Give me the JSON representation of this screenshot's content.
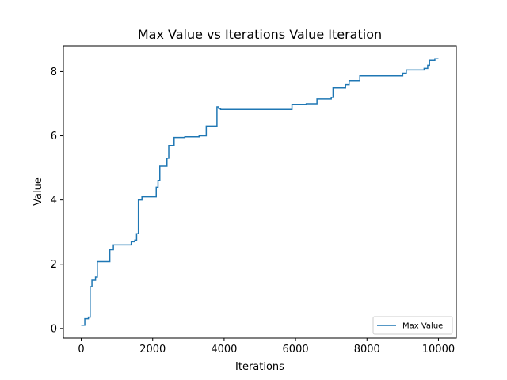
{
  "chart_data": {
    "type": "line",
    "title": "Max Value vs Iterations Value Iteration",
    "xlabel": "Iterations",
    "ylabel": "Value",
    "xlim": [
      -500,
      10500
    ],
    "ylim": [
      -0.3,
      8.8
    ],
    "x_ticks": [
      0,
      2000,
      4000,
      6000,
      8000,
      10000
    ],
    "y_ticks": [
      0,
      2,
      4,
      6,
      8
    ],
    "grid": false,
    "legend_position": "lower-right",
    "series": [
      {
        "name": "Max Value",
        "color": "#1f77b4",
        "step": true,
        "x": [
          0,
          100,
          200,
          250,
          300,
          400,
          450,
          800,
          900,
          1400,
          1500,
          1550,
          1600,
          1700,
          2100,
          2150,
          2200,
          2400,
          2450,
          2500,
          2600,
          2900,
          3000,
          3300,
          3500,
          3800,
          3850,
          3900,
          5900,
          6300,
          6600,
          7000,
          7050,
          7400,
          7500,
          7800,
          8600,
          9000,
          9100,
          9500,
          9600,
          9700,
          9750,
          9900,
          10000
        ],
        "y": [
          0.1,
          0.3,
          0.35,
          1.3,
          1.5,
          1.6,
          2.08,
          2.45,
          2.6,
          2.7,
          2.75,
          2.95,
          4.0,
          4.1,
          4.4,
          4.6,
          5.05,
          5.3,
          5.7,
          5.7,
          5.95,
          5.97,
          5.97,
          6.0,
          6.3,
          6.9,
          6.85,
          6.82,
          6.98,
          7.0,
          7.15,
          7.2,
          7.5,
          7.6,
          7.72,
          7.87,
          7.87,
          7.95,
          8.05,
          8.05,
          8.1,
          8.2,
          8.35,
          8.4,
          8.4
        ]
      }
    ]
  }
}
